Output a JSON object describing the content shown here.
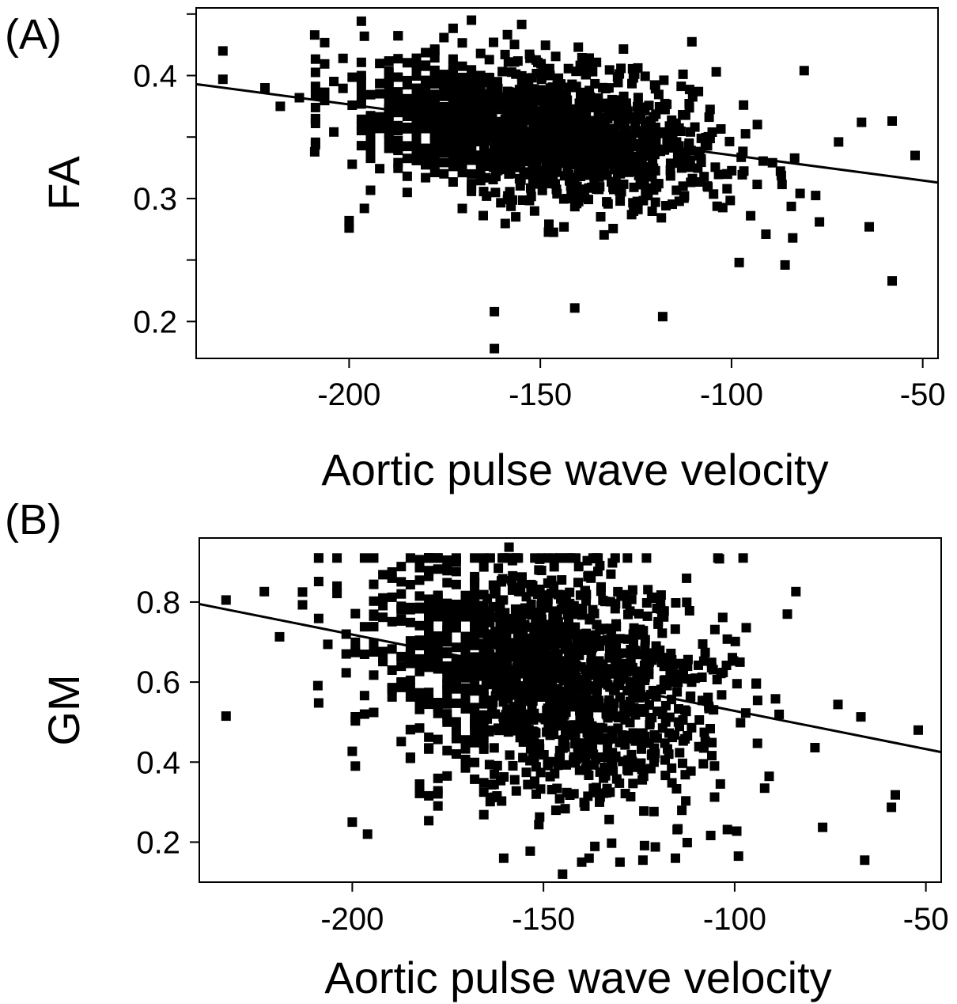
{
  "chart_data": [
    {
      "type": "scatter",
      "panel_label": "(A)",
      "xlabel": "Aortic pulse wave velocity",
      "ylabel": "FA",
      "xlim": [
        -240,
        -46
      ],
      "ylim": [
        0.17,
        0.455
      ],
      "x_ticks": [
        -200,
        -150,
        -100,
        -50
      ],
      "x_tick_labels": [
        "-200",
        "-150",
        "-100",
        "-50"
      ],
      "y_ticks": [
        0.2,
        0.25,
        0.3,
        0.35,
        0.4,
        0.45
      ],
      "y_tick_labels": [
        "0.2",
        "",
        "0.3",
        "",
        "0.4",
        ""
      ],
      "grid": false,
      "fit_line": {
        "x": [
          -240,
          -46
        ],
        "y": [
          0.393,
          0.313
        ]
      },
      "outliers": {
        "x": [
          -233,
          -233,
          -222,
          -218,
          -213,
          -209,
          -209,
          -196,
          -200,
          -200,
          -196,
          -162,
          -162,
          -141,
          -118,
          -104,
          -98,
          -86,
          -84,
          -81,
          -77,
          -72,
          -66,
          -64,
          -58,
          -52,
          -58,
          -91,
          -95
        ],
        "y": [
          0.42,
          0.397,
          0.39,
          0.375,
          0.382,
          0.433,
          0.338,
          0.432,
          0.282,
          0.276,
          0.292,
          0.208,
          0.178,
          0.211,
          0.204,
          0.403,
          0.248,
          0.246,
          0.268,
          0.404,
          0.281,
          0.346,
          0.362,
          0.277,
          0.363,
          0.335,
          0.233,
          0.271,
          0.286
        ]
      },
      "cloud": {
        "n": 1500,
        "x_mean": -150,
        "x_sd": 22,
        "x_range": [
          -210,
          -78
        ],
        "y_sd": 0.026,
        "y_range": [
          0.24,
          0.445
        ],
        "seed": 7
      }
    },
    {
      "type": "scatter",
      "panel_label": "(B)",
      "xlabel": "Aortic pulse wave velocity",
      "ylabel": "GM",
      "xlim": [
        -240,
        -46
      ],
      "ylim": [
        0.1,
        0.96
      ],
      "x_ticks": [
        -200,
        -150,
        -100,
        -50
      ],
      "x_tick_labels": [
        "-200",
        "-150",
        "-100",
        "-50"
      ],
      "y_ticks": [
        0.2,
        0.4,
        0.6,
        0.8
      ],
      "y_tick_labels": [
        "0.2",
        "0.4",
        "0.6",
        "0.8"
      ],
      "grid": false,
      "fit_line": {
        "x": [
          -240,
          -46
        ],
        "y": [
          0.795,
          0.425
        ]
      },
      "outliers": {
        "x": [
          -233,
          -233,
          -223,
          -219,
          -213,
          -213,
          -209,
          -200,
          -200,
          -196,
          -159,
          -145,
          -140,
          -130,
          -124,
          -104,
          -99,
          -84,
          -79,
          -77,
          -73,
          -67,
          -66,
          -59,
          -58,
          -52
        ],
        "y": [
          0.805,
          0.515,
          0.826,
          0.713,
          0.825,
          0.793,
          0.591,
          0.25,
          0.427,
          0.22,
          0.937,
          0.12,
          0.15,
          0.15,
          0.155,
          0.908,
          0.165,
          0.826,
          0.436,
          0.237,
          0.544,
          0.513,
          0.155,
          0.287,
          0.318,
          0.48
        ]
      },
      "cloud": {
        "n": 1500,
        "x_mean": -150,
        "x_sd": 22,
        "x_range": [
          -210,
          -78
        ],
        "y_sd": 0.15,
        "y_range": [
          0.16,
          0.91
        ],
        "seed": 11
      }
    }
  ]
}
